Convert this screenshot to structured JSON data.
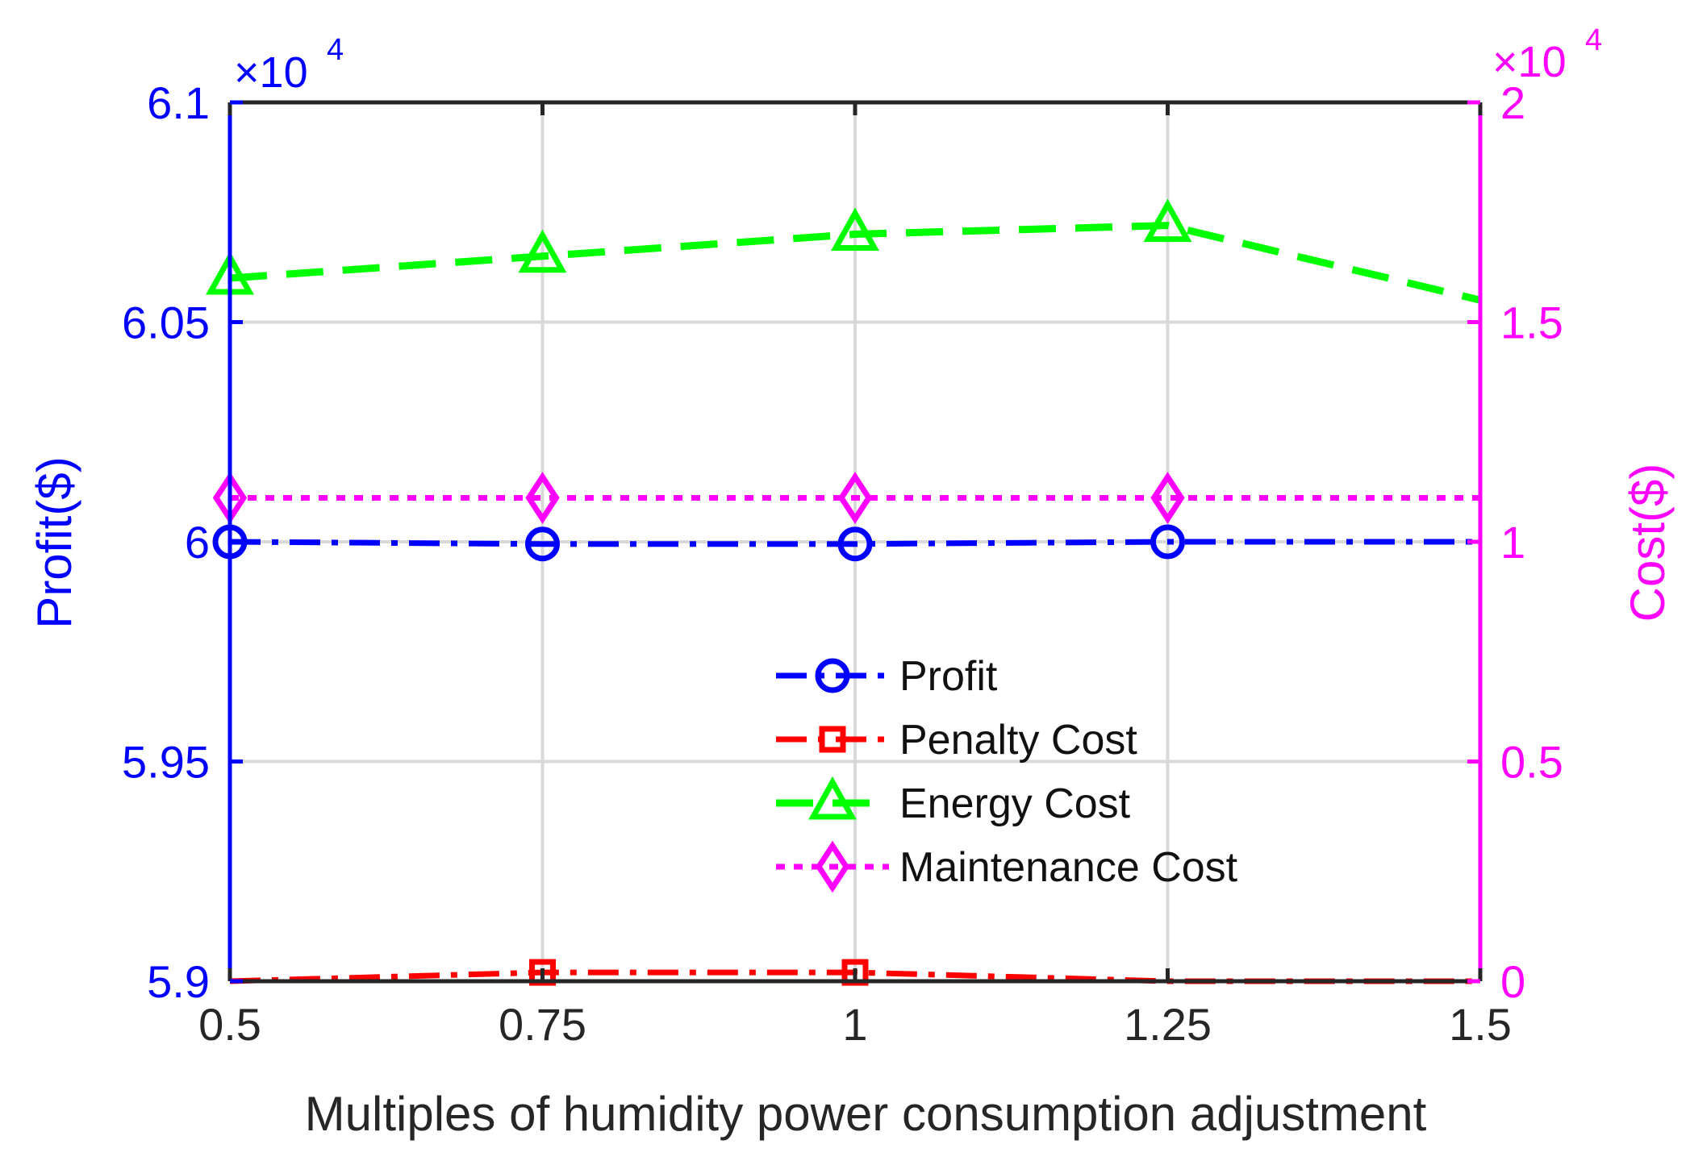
{
  "chart_data": {
    "type": "line",
    "xlabel": "Multiples of humidity power consumption adjustment",
    "x": [
      0.5,
      0.75,
      1,
      1.25,
      1.5
    ],
    "x_tick_labels": [
      "0.5",
      "0.75",
      "1",
      "1.25",
      "1.5"
    ],
    "xlim": [
      0.5,
      1.5
    ],
    "grid": true,
    "y_left": {
      "label": "Profit($)",
      "color": "#0000ff",
      "lim": [
        5.9,
        6.1
      ],
      "ticks": [
        5.9,
        5.95,
        6.0,
        6.05,
        6.1
      ],
      "tick_labels": [
        "5.9",
        "5.95",
        "6",
        "6.05",
        "6.1"
      ],
      "exponent_times": "×10",
      "exponent_power": "4"
    },
    "y_right": {
      "label": "Cost($)",
      "color": "#ff00ff",
      "lim": [
        0,
        2
      ],
      "ticks": [
        0,
        0.5,
        1,
        1.5,
        2
      ],
      "tick_labels": [
        "0",
        "0.5",
        "1",
        "1.5",
        "2"
      ],
      "exponent_times": "×10",
      "exponent_power": "4"
    },
    "series": [
      {
        "name": "Profit",
        "axis": "left",
        "color": "#0000ff",
        "line_style": "dashdot",
        "marker": "circle",
        "values": [
          6.0,
          5.9995,
          5.9995,
          6.0,
          6.0
        ],
        "marker_at": [
          0,
          1,
          2,
          3
        ]
      },
      {
        "name": "Penalty Cost",
        "axis": "right",
        "color": "#ff0000",
        "line_style": "dashdot",
        "marker": "square",
        "values": [
          0.0,
          0.02,
          0.02,
          0.0,
          0.0
        ],
        "marker_at": [
          1,
          2
        ]
      },
      {
        "name": "Energy Cost",
        "axis": "right",
        "color": "#00ff00",
        "line_style": "dashed",
        "marker": "triangle",
        "values": [
          1.6,
          1.65,
          1.7,
          1.72,
          1.55
        ],
        "marker_at": [
          0,
          1,
          2,
          3
        ]
      },
      {
        "name": "Maintenance Cost",
        "axis": "right",
        "color": "#ff00ff",
        "line_style": "dotted",
        "marker": "diamond",
        "values": [
          1.1,
          1.1,
          1.1,
          1.1,
          1.1
        ],
        "marker_at": [
          0,
          1,
          2,
          3
        ]
      }
    ],
    "legend_location": "lower-center"
  }
}
